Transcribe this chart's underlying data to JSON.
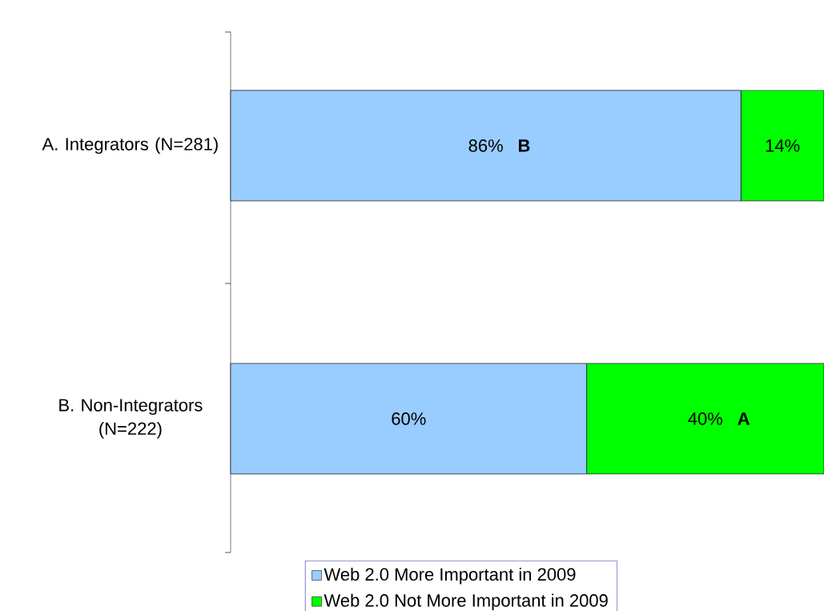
{
  "chart_data": {
    "type": "bar",
    "orientation": "horizontal",
    "stacked": true,
    "categories": [
      "A. Integrators (N=281)",
      "B. Non-Integrators (N=222)"
    ],
    "series": [
      {
        "name": "Web 2.0 More Important in 2009",
        "color": "#99ccff",
        "values": [
          86,
          60
        ],
        "value_labels": [
          "86%",
          "60%"
        ]
      },
      {
        "name": "Web 2.0 Not More Important in 2009",
        "color": "#00ff00",
        "values": [
          14,
          40
        ],
        "value_labels": [
          "14%",
          "40%"
        ]
      }
    ],
    "annotations": [
      "B",
      "A"
    ],
    "legend": "bottom"
  }
}
